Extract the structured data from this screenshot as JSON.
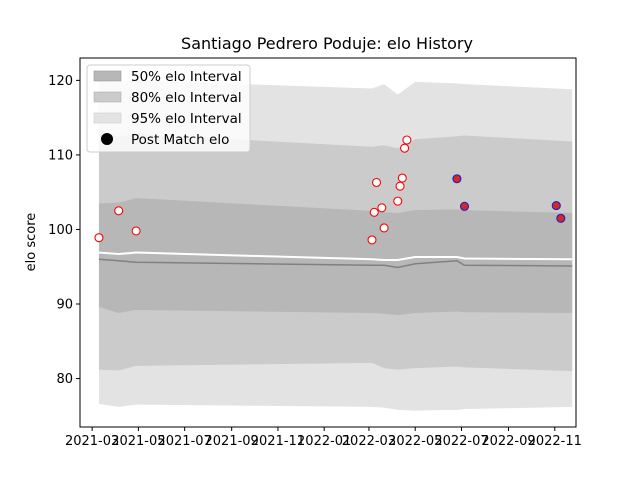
{
  "chart_data": {
    "type": "line",
    "title": "Santiago Pedrero Poduje: elo History",
    "xlabel": "",
    "ylabel": "elo score",
    "xlim": [
      "2021-02-13",
      "2022-11-29"
    ],
    "ylim": [
      73.5,
      123
    ],
    "x_ticks": [
      "2021-03",
      "2021-05",
      "2021-07",
      "2021-09",
      "2021-11",
      "2022-01",
      "2022-03",
      "2022-05",
      "2022-07",
      "2022-09",
      "2022-11"
    ],
    "y_ticks": [
      80,
      90,
      100,
      110,
      120
    ],
    "grid": false,
    "legend_position": "top-left",
    "legend": [
      "50% elo Interval",
      "80% elo Interval",
      "95% elo Interval",
      "Post Match elo"
    ],
    "band_x": [
      "2021-03-10",
      "2021-04-05",
      "2021-04-28",
      "2022-03-05",
      "2022-03-21",
      "2022-04-08",
      "2022-05-01",
      "2022-06-25",
      "2022-07-05",
      "2022-11-24"
    ],
    "mean": [
      96.9,
      96.7,
      96.9,
      96.0,
      95.9,
      95.9,
      96.3,
      96.3,
      96.1,
      96.0
    ],
    "median": [
      96.0,
      95.8,
      95.6,
      95.2,
      95.2,
      94.9,
      95.4,
      95.8,
      95.2,
      95.1
    ],
    "band_50": {
      "lower": [
        89.6,
        88.8,
        89.2,
        88.8,
        88.7,
        88.5,
        88.8,
        89.0,
        88.9,
        88.8
      ],
      "upper": [
        103.5,
        103.6,
        104.2,
        102.5,
        102.3,
        102.2,
        102.6,
        102.7,
        102.6,
        102.2
      ]
    },
    "band_80": {
      "lower": [
        81.2,
        81.1,
        81.7,
        82.1,
        81.4,
        81.2,
        81.4,
        81.6,
        81.5,
        81.0
      ],
      "upper": [
        112.7,
        112.5,
        112.8,
        111.1,
        111.3,
        110.9,
        112.1,
        112.5,
        112.6,
        111.8
      ]
    },
    "band_95": {
      "lower": [
        76.6,
        76.2,
        76.5,
        76.2,
        76.1,
        75.8,
        75.7,
        75.8,
        75.9,
        76.2
      ],
      "upper": [
        119.9,
        119.8,
        120.0,
        118.9,
        119.5,
        118.1,
        119.8,
        119.6,
        119.5,
        118.8
      ]
    },
    "series": [
      {
        "name": "Post Match elo",
        "points": [
          {
            "x": "2021-03-10",
            "y": 98.9
          },
          {
            "x": "2021-04-05",
            "y": 102.5
          },
          {
            "x": "2021-04-28",
            "y": 99.8
          },
          {
            "x": "2022-03-05",
            "y": 98.6
          },
          {
            "x": "2022-03-08",
            "y": 102.3
          },
          {
            "x": "2022-03-11",
            "y": 106.3
          },
          {
            "x": "2022-03-18",
            "y": 102.9
          },
          {
            "x": "2022-03-21",
            "y": 100.2
          },
          {
            "x": "2022-04-08",
            "y": 103.8
          },
          {
            "x": "2022-04-11",
            "y": 105.8
          },
          {
            "x": "2022-04-14",
            "y": 106.9
          },
          {
            "x": "2022-04-17",
            "y": 110.9
          },
          {
            "x": "2022-04-20",
            "y": 112.0
          },
          {
            "x": "2022-06-25",
            "y": 106.8
          },
          {
            "x": "2022-07-05",
            "y": 103.1
          },
          {
            "x": "2022-11-03",
            "y": 103.2
          },
          {
            "x": "2022-11-09",
            "y": 101.5
          }
        ]
      }
    ]
  },
  "colors": {
    "band_50": "#b7b7b7",
    "band_80": "#cbcbcb",
    "band_95": "#e3e3e3",
    "mean_line": "#ffffff",
    "median_line": "#808080",
    "marker_edge": "#ff0000",
    "marker_fill_open": "#ffffff",
    "marker_fill_recent": "#1f1fbf",
    "marker_edge_recent": "#d62728"
  }
}
